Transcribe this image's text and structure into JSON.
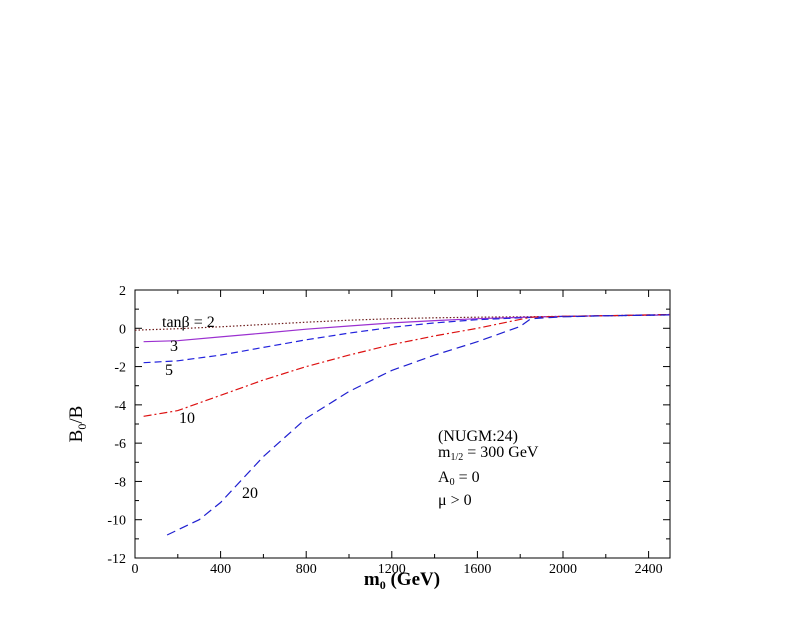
{
  "chart_data": {
    "type": "line",
    "title": "",
    "xlabel": {
      "main": "m",
      "sub": "0",
      "rest": " (GeV)"
    },
    "ylabel": {
      "main": "B",
      "sub": "0",
      "rest": "/B"
    },
    "xlim": [
      0,
      2500
    ],
    "ylim": [
      -12,
      2
    ],
    "xticks": [
      0,
      400,
      800,
      1200,
      1600,
      2000,
      2400
    ],
    "yticks": [
      2,
      0,
      -2,
      -4,
      -6,
      -8,
      -10,
      -12
    ],
    "grid": false,
    "series": [
      {
        "label": "tanβ = 2",
        "color": "#6b1a1a",
        "dash": "1.5,2",
        "x": [
          0,
          200,
          400,
          600,
          800,
          1000,
          1200,
          1400,
          1600,
          1800,
          2000,
          2200,
          2500
        ],
        "y": [
          -0.1,
          -0.02,
          0.08,
          0.2,
          0.32,
          0.42,
          0.5,
          0.55,
          0.58,
          0.6,
          0.62,
          0.65,
          0.7
        ]
      },
      {
        "label": "3",
        "color": "#9b30d0",
        "dash": "",
        "x": [
          40,
          200,
          400,
          600,
          800,
          1000,
          1200,
          1400,
          1600,
          1800,
          2000,
          2200,
          2500
        ],
        "y": [
          -0.7,
          -0.65,
          -0.45,
          -0.25,
          -0.05,
          0.12,
          0.28,
          0.4,
          0.5,
          0.57,
          0.62,
          0.66,
          0.7
        ]
      },
      {
        "label": "5",
        "color": "#2222dd",
        "dash": "7,4",
        "x": [
          40,
          200,
          400,
          600,
          800,
          1000,
          1200,
          1400,
          1600,
          1800,
          2000,
          2200,
          2500
        ],
        "y": [
          -1.8,
          -1.7,
          -1.4,
          -1.0,
          -0.6,
          -0.25,
          0.05,
          0.28,
          0.45,
          0.55,
          0.62,
          0.66,
          0.72
        ]
      },
      {
        "label": "10",
        "color": "#dd1111",
        "dash": "8,3,2,3",
        "x": [
          40,
          200,
          400,
          600,
          800,
          1000,
          1200,
          1400,
          1600,
          1750,
          1850,
          2000,
          2200,
          2500
        ],
        "y": [
          -4.6,
          -4.3,
          -3.5,
          -2.7,
          -2.0,
          -1.4,
          -0.85,
          -0.4,
          0.0,
          0.35,
          0.58,
          0.62,
          0.66,
          0.72
        ]
      },
      {
        "label": "20",
        "color": "#1f1fd0",
        "dash": "9,5",
        "x": [
          150,
          300,
          400,
          600,
          800,
          1000,
          1200,
          1400,
          1600,
          1800,
          1850,
          2000,
          2200,
          2500
        ],
        "y": [
          -10.8,
          -10.0,
          -9.1,
          -6.7,
          -4.7,
          -3.3,
          -2.2,
          -1.4,
          -0.7,
          0.1,
          0.5,
          0.6,
          0.65,
          0.7
        ]
      }
    ],
    "annotations": [
      {
        "text": "(NUGM:24)"
      },
      {
        "main": "m",
        "sub": "1/2",
        "rest": " = 300 GeV"
      },
      {
        "main": "A",
        "sub": "0",
        "rest": " = 0"
      },
      {
        "main": "μ > 0"
      }
    ]
  }
}
